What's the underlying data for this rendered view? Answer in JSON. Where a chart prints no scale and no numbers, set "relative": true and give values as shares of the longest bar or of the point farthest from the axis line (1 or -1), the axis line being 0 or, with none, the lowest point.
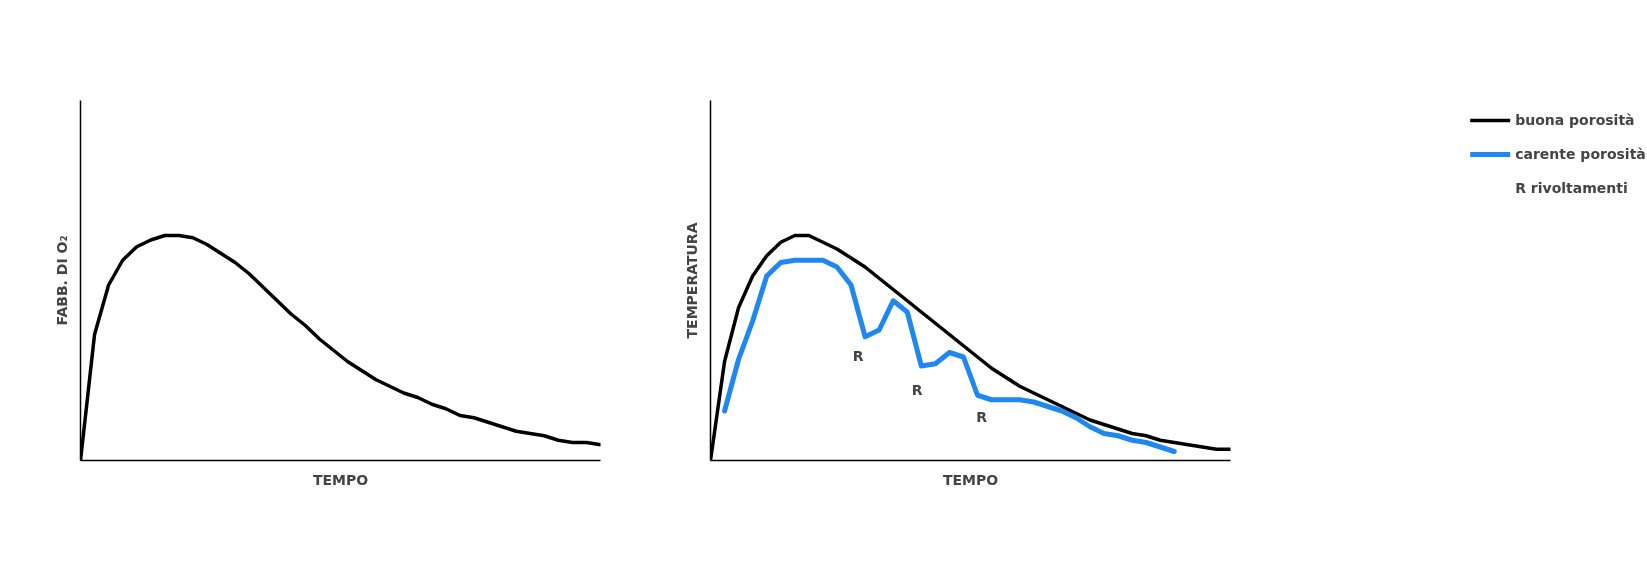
{
  "chart_data": [
    {
      "type": "line",
      "relative": true,
      "ylabel": "FABB. DI O₂",
      "xlabel": "TEMPO",
      "categories": [
        null,
        null,
        null,
        null,
        null,
        null,
        null,
        null,
        null,
        null,
        null,
        null,
        null,
        null,
        null,
        null,
        null,
        null,
        null,
        null,
        null,
        null,
        null,
        null,
        null,
        null,
        null,
        null,
        null,
        null,
        null,
        null,
        null,
        null,
        null,
        null,
        null,
        null
      ],
      "series": [
        {
          "color": "#000000",
          "values": [
            0,
            0.56,
            0.78,
            0.89,
            0.95,
            0.98,
            1,
            1,
            0.99,
            0.96,
            0.92,
            0.88,
            0.83,
            0.77,
            0.71,
            0.65,
            0.6,
            0.54,
            0.49,
            0.44,
            0.4,
            0.36,
            0.33,
            0.3,
            0.28,
            0.25,
            0.23,
            0.2,
            0.19,
            0.17,
            0.15,
            0.13,
            0.12,
            0.11,
            0.09,
            0.08,
            0.08,
            0.07
          ]
        }
      ],
      "marker": "none",
      "line_style": "solid",
      "grid": false,
      "legend": false
    },
    {
      "type": "line",
      "relative": true,
      "ylabel": "TEMPERATURA",
      "xlabel": "TEMPO",
      "categories": [
        null,
        null,
        null,
        null,
        null,
        null,
        null,
        null,
        null,
        null,
        null,
        null,
        null,
        null,
        null,
        null,
        null,
        null,
        null,
        null,
        null,
        null,
        null,
        null,
        null,
        null,
        null,
        null,
        null,
        null,
        null,
        null,
        null,
        null,
        null,
        null,
        null,
        null
      ],
      "series": [
        {
          "name": "buona porosità",
          "color": "#000000",
          "values": [
            0,
            0.44,
            0.68,
            0.82,
            0.91,
            0.97,
            1,
            1,
            0.97,
            0.94,
            0.9,
            0.86,
            0.81,
            0.76,
            0.71,
            0.66,
            0.61,
            0.56,
            0.51,
            0.46,
            0.41,
            0.37,
            0.33,
            0.3,
            0.27,
            0.24,
            0.21,
            0.18,
            0.16,
            0.14,
            0.12,
            0.11,
            0.09,
            0.08,
            0.07,
            0.06,
            0.05,
            0.05
          ]
        },
        {
          "name": "carente porosità",
          "color": "#1e88f0",
          "values": [
            null,
            0.22,
            0.45,
            0.62,
            0.82,
            0.88,
            0.89,
            0.89,
            0.89,
            0.86,
            0.78,
            0.55,
            0.58,
            0.71,
            0.66,
            0.42,
            0.43,
            0.48,
            0.46,
            0.29,
            0.27,
            0.27,
            0.27,
            0.26,
            0.24,
            0.22,
            0.19,
            0.15,
            0.12,
            0.11,
            0.09,
            0.08,
            0.06,
            0.04,
            null,
            null,
            null,
            null
          ]
        }
      ],
      "annotations": [
        "R",
        "R",
        "R",
        "R rivoltamenti"
      ],
      "marker": "none",
      "line_style": "solid",
      "grid": false,
      "legend": "top right"
    }
  ]
}
